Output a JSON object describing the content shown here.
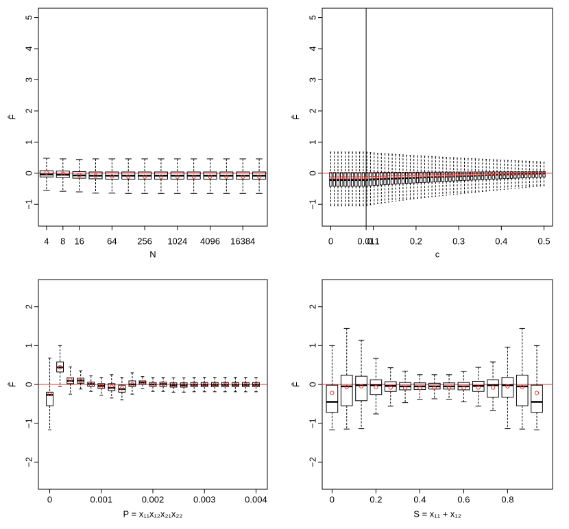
{
  "colors": {
    "axis": "#000000",
    "box": "#000000",
    "reference_line": "#e3342f",
    "mean_marker": "#e3342f"
  },
  "chart_data": [
    {
      "id": "p1",
      "type": "boxplot",
      "xlabel": "N",
      "ylabel": "F̂",
      "ylim": [
        -1.7,
        5.3
      ],
      "yticks": [
        "−1",
        "0",
        "1",
        "2",
        "3",
        "4",
        "5"
      ],
      "ytick_values": [
        -1,
        0,
        1,
        2,
        3,
        4,
        5
      ],
      "xlim": [
        0.5,
        14.5
      ],
      "xticks": [
        {
          "x": 1,
          "label": "4"
        },
        {
          "x": 2,
          "label": "8"
        },
        {
          "x": 3,
          "label": "16"
        },
        {
          "x": 5,
          "label": "64"
        },
        {
          "x": 7,
          "label": "256"
        },
        {
          "x": 9,
          "label": "1024"
        },
        {
          "x": 11,
          "label": "4096"
        },
        {
          "x": 13,
          "label": "16384"
        }
      ],
      "reference_line": 0,
      "boxes": [
        {
          "x": 1,
          "lw": -0.55,
          "q1": -0.12,
          "med": -0.04,
          "q3": 0.08,
          "uw": 0.48,
          "mean": 0.02
        },
        {
          "x": 2,
          "lw": -0.58,
          "q1": -0.14,
          "med": -0.05,
          "q3": 0.07,
          "uw": 0.46,
          "mean": -0.02
        },
        {
          "x": 3,
          "lw": -0.6,
          "q1": -0.16,
          "med": -0.07,
          "q3": 0.05,
          "uw": 0.44,
          "mean": -0.06
        },
        {
          "x": 4,
          "lw": -0.64,
          "q1": -0.18,
          "med": -0.08,
          "q3": 0.04,
          "uw": 0.46,
          "mean": -0.08
        },
        {
          "x": 5,
          "lw": -0.64,
          "q1": -0.19,
          "med": -0.08,
          "q3": 0.04,
          "uw": 0.46,
          "mean": -0.1
        },
        {
          "x": 6,
          "lw": -0.65,
          "q1": -0.19,
          "med": -0.08,
          "q3": 0.04,
          "uw": 0.46,
          "mean": -0.11
        },
        {
          "x": 7,
          "lw": -0.65,
          "q1": -0.19,
          "med": -0.08,
          "q3": 0.04,
          "uw": 0.46,
          "mean": -0.11
        },
        {
          "x": 8,
          "lw": -0.65,
          "q1": -0.19,
          "med": -0.08,
          "q3": 0.04,
          "uw": 0.46,
          "mean": -0.11
        },
        {
          "x": 9,
          "lw": -0.65,
          "q1": -0.19,
          "med": -0.08,
          "q3": 0.04,
          "uw": 0.46,
          "mean": -0.11
        },
        {
          "x": 10,
          "lw": -0.65,
          "q1": -0.19,
          "med": -0.08,
          "q3": 0.04,
          "uw": 0.46,
          "mean": -0.11
        },
        {
          "x": 11,
          "lw": -0.65,
          "q1": -0.19,
          "med": -0.08,
          "q3": 0.04,
          "uw": 0.46,
          "mean": -0.11
        },
        {
          "x": 12,
          "lw": -0.65,
          "q1": -0.19,
          "med": -0.08,
          "q3": 0.04,
          "uw": 0.46,
          "mean": -0.11
        },
        {
          "x": 13,
          "lw": -0.65,
          "q1": -0.19,
          "med": -0.08,
          "q3": 0.04,
          "uw": 0.46,
          "mean": -0.11
        },
        {
          "x": 14,
          "lw": -0.65,
          "q1": -0.19,
          "med": -0.08,
          "q3": 0.04,
          "uw": 0.46,
          "mean": -0.11
        }
      ]
    },
    {
      "id": "p2",
      "type": "boxplot",
      "xlabel": "c",
      "ylabel": "F̂",
      "ylim": [
        -1.7,
        5.3
      ],
      "yticks": [
        "−1",
        "0",
        "1",
        "2",
        "3",
        "4",
        "5"
      ],
      "ytick_values": [
        -1,
        0,
        1,
        2,
        3,
        4,
        5
      ],
      "xlim": [
        -0.02,
        0.52
      ],
      "xticks": [
        {
          "x": 0,
          "label": "0"
        },
        {
          "x": 0.1,
          "label": "0.1"
        },
        {
          "x": 0.2,
          "label": "0.2"
        },
        {
          "x": 0.3,
          "label": "0.3"
        },
        {
          "x": 0.4,
          "label": "0.4"
        },
        {
          "x": 0.5,
          "label": "0.5"
        }
      ],
      "extra_xtick": {
        "x": 0.083,
        "label": "0.01"
      },
      "vertical_line_at": 0.083,
      "reference_line": 0,
      "dense_box_series": {
        "x_start": 0.0,
        "x_end": 0.5,
        "count": 60,
        "box_width": 0.0055
      },
      "dense_box_endpoints": {
        "start": {
          "lw": -1.05,
          "q1": -0.42,
          "med": -0.22,
          "q3": 0.02,
          "uw": 0.68
        },
        "peak_x": 0.083,
        "end": {
          "lw": -0.4,
          "q1": -0.12,
          "med": -0.01,
          "q3": 0.05,
          "uw": 0.36
        },
        "mean_start": -0.15,
        "mean_end": 0.0
      }
    },
    {
      "id": "p3",
      "type": "boxplot",
      "xlabel": "P = x₁₁x₁₂x₂₁x₂₂",
      "ylabel": "F̂",
      "ylim": [
        -2.7,
        2.7
      ],
      "yticks": [
        "−2",
        "−1",
        "0",
        "1",
        "2"
      ],
      "ytick_values": [
        -2,
        -1,
        0,
        1,
        2
      ],
      "xlim": [
        -0.00022,
        0.00422
      ],
      "xticks": [
        {
          "x": 0,
          "label": "0"
        },
        {
          "x": 0.001,
          "label": "0.001"
        },
        {
          "x": 0.002,
          "label": "0.002"
        },
        {
          "x": 0.003,
          "label": "0.003"
        },
        {
          "x": 0.004,
          "label": "0.004"
        }
      ],
      "box_width": 0.00013,
      "reference_line": 0,
      "boxes": [
        {
          "x": 0,
          "lw": -1.17,
          "q1": -0.55,
          "med": -0.27,
          "q3": -0.2,
          "uw": 0.68,
          "mean": -0.25
        },
        {
          "x": 0.0002,
          "lw": -0.05,
          "q1": 0.32,
          "med": 0.44,
          "q3": 0.58,
          "uw": 1.0,
          "mean": 0.44
        },
        {
          "x": 0.0004,
          "lw": -0.25,
          "q1": 0.02,
          "med": 0.09,
          "q3": 0.17,
          "uw": 0.45,
          "mean": 0.12
        },
        {
          "x": 0.0006,
          "lw": -0.12,
          "q1": 0.03,
          "med": 0.1,
          "q3": 0.16,
          "uw": 0.35,
          "mean": 0.09
        },
        {
          "x": 0.0008,
          "lw": -0.18,
          "q1": -0.05,
          "med": 0.01,
          "q3": 0.06,
          "uw": 0.22,
          "mean": 0.0
        },
        {
          "x": 0.001,
          "lw": -0.28,
          "q1": -0.1,
          "med": -0.04,
          "q3": 0.02,
          "uw": 0.18,
          "mean": -0.05
        },
        {
          "x": 0.0012,
          "lw": -0.35,
          "q1": -0.16,
          "med": -0.09,
          "q3": 0.02,
          "uw": 0.25,
          "mean": -0.06
        },
        {
          "x": 0.0014,
          "lw": -0.4,
          "q1": -0.2,
          "med": -0.12,
          "q3": -0.02,
          "uw": 0.18,
          "mean": -0.1
        },
        {
          "x": 0.0016,
          "lw": -0.25,
          "q1": -0.05,
          "med": 0.0,
          "q3": 0.09,
          "uw": 0.3,
          "mean": 0.0
        },
        {
          "x": 0.0018,
          "lw": -0.1,
          "q1": 0.0,
          "med": 0.05,
          "q3": 0.09,
          "uw": 0.2,
          "mean": 0.05
        },
        {
          "x": 0.002,
          "lw": -0.18,
          "q1": -0.05,
          "med": 0.0,
          "q3": 0.05,
          "uw": 0.18,
          "mean": 0.0
        },
        {
          "x": 0.0022,
          "lw": -0.18,
          "q1": -0.05,
          "med": 0.01,
          "q3": 0.06,
          "uw": 0.18,
          "mean": 0.01
        },
        {
          "x": 0.0024,
          "lw": -0.2,
          "q1": -0.07,
          "med": -0.02,
          "q3": 0.04,
          "uw": 0.17,
          "mean": -0.02
        },
        {
          "x": 0.0026,
          "lw": -0.2,
          "q1": -0.07,
          "med": -0.02,
          "q3": 0.04,
          "uw": 0.17,
          "mean": -0.02
        },
        {
          "x": 0.0028,
          "lw": -0.19,
          "q1": -0.06,
          "med": -0.01,
          "q3": 0.05,
          "uw": 0.18,
          "mean": -0.01
        },
        {
          "x": 0.003,
          "lw": -0.19,
          "q1": -0.06,
          "med": -0.01,
          "q3": 0.05,
          "uw": 0.18,
          "mean": -0.01
        },
        {
          "x": 0.0032,
          "lw": -0.19,
          "q1": -0.06,
          "med": -0.01,
          "q3": 0.05,
          "uw": 0.18,
          "mean": -0.01
        },
        {
          "x": 0.0034,
          "lw": -0.19,
          "q1": -0.06,
          "med": -0.01,
          "q3": 0.05,
          "uw": 0.18,
          "mean": -0.01
        },
        {
          "x": 0.0036,
          "lw": -0.19,
          "q1": -0.06,
          "med": -0.01,
          "q3": 0.05,
          "uw": 0.18,
          "mean": -0.01
        },
        {
          "x": 0.0038,
          "lw": -0.19,
          "q1": -0.06,
          "med": -0.01,
          "q3": 0.05,
          "uw": 0.18,
          "mean": -0.01
        },
        {
          "x": 0.004,
          "lw": -0.19,
          "q1": -0.06,
          "med": -0.01,
          "q3": 0.05,
          "uw": 0.18,
          "mean": -0.01
        }
      ]
    },
    {
      "id": "p4",
      "type": "boxplot",
      "xlabel": "S = x₁₁ + x₁₂",
      "ylabel": "F̂",
      "ylim": [
        -2.7,
        2.7
      ],
      "yticks": [
        "−2",
        "−1",
        "0",
        "1",
        "2"
      ],
      "ytick_values": [
        -2,
        -1,
        0,
        1,
        2
      ],
      "xlim": [
        -0.045,
        1.005
      ],
      "xticks": [
        {
          "x": 0,
          "label": "0"
        },
        {
          "x": 0.2,
          "label": "0.2"
        },
        {
          "x": 0.4,
          "label": "0.4"
        },
        {
          "x": 0.6,
          "label": "0.6"
        },
        {
          "x": 0.8,
          "label": "0.8"
        }
      ],
      "box_width": 0.052,
      "reference_line": 0,
      "boxes": [
        {
          "x": 0.0,
          "lw": -1.17,
          "q1": -0.72,
          "med": -0.45,
          "q3": -0.02,
          "uw": 1.0,
          "mean": -0.22
        },
        {
          "x": 0.0667,
          "lw": -1.15,
          "q1": -0.55,
          "med": -0.05,
          "q3": 0.24,
          "uw": 1.44,
          "mean": -0.07
        },
        {
          "x": 0.1333,
          "lw": -1.14,
          "q1": -0.42,
          "med": -0.02,
          "q3": 0.21,
          "uw": 1.14,
          "mean": -0.05
        },
        {
          "x": 0.2,
          "lw": -0.76,
          "q1": -0.26,
          "med": -0.02,
          "q3": 0.12,
          "uw": 0.67,
          "mean": -0.07
        },
        {
          "x": 0.2667,
          "lw": -0.56,
          "q1": -0.18,
          "med": -0.04,
          "q3": 0.07,
          "uw": 0.43,
          "mean": -0.08
        },
        {
          "x": 0.3333,
          "lw": -0.47,
          "q1": -0.14,
          "med": -0.05,
          "q3": 0.05,
          "uw": 0.34,
          "mean": -0.09
        },
        {
          "x": 0.4,
          "lw": -0.39,
          "q1": -0.13,
          "med": -0.05,
          "q3": 0.04,
          "uw": 0.25,
          "mean": -0.09
        },
        {
          "x": 0.4667,
          "lw": -0.37,
          "q1": -0.12,
          "med": -0.05,
          "q3": 0.03,
          "uw": 0.25,
          "mean": -0.09
        },
        {
          "x": 0.5333,
          "lw": -0.38,
          "q1": -0.12,
          "med": -0.05,
          "q3": 0.04,
          "uw": 0.25,
          "mean": -0.08
        },
        {
          "x": 0.6,
          "lw": -0.45,
          "q1": -0.14,
          "med": -0.05,
          "q3": 0.05,
          "uw": 0.33,
          "mean": -0.09
        },
        {
          "x": 0.6667,
          "lw": -0.56,
          "q1": -0.18,
          "med": -0.04,
          "q3": 0.08,
          "uw": 0.44,
          "mean": -0.08
        },
        {
          "x": 0.7333,
          "lw": -0.68,
          "q1": -0.33,
          "med": -0.02,
          "q3": 0.12,
          "uw": 0.58,
          "mean": -0.08
        },
        {
          "x": 0.8,
          "lw": -1.14,
          "q1": -0.33,
          "med": -0.02,
          "q3": 0.18,
          "uw": 0.96,
          "mean": -0.05
        },
        {
          "x": 0.8667,
          "lw": -1.15,
          "q1": -0.55,
          "med": -0.05,
          "q3": 0.24,
          "uw": 1.44,
          "mean": -0.07
        },
        {
          "x": 0.9333,
          "lw": -1.17,
          "q1": -0.72,
          "med": -0.45,
          "q3": -0.02,
          "uw": 1.0,
          "mean": -0.22
        }
      ]
    }
  ]
}
